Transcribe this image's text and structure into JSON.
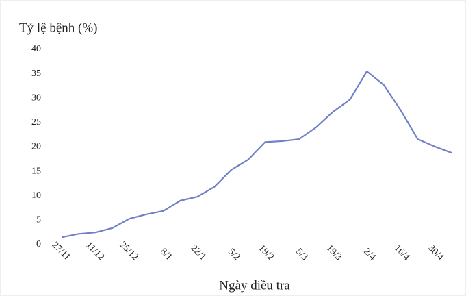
{
  "chart_data": {
    "type": "line",
    "title": "Tỷ lệ bệnh (%)",
    "x_label": "Ngày điều tra",
    "categories": [
      "27/11",
      null,
      "11/12",
      null,
      "25/12",
      null,
      "8/1",
      null,
      "22/1",
      null,
      "5/2",
      null,
      "19/2",
      null,
      "5/3",
      null,
      "19/3",
      null,
      "2/4",
      null,
      "16/4",
      null,
      "30/4",
      null
    ],
    "series": [
      {
        "name": "Tỷ lệ bệnh",
        "color": "#6f80c6",
        "values": [
          1.5,
          2.2,
          2.5,
          3.4,
          5.3,
          6.2,
          6.9,
          9.0,
          9.8,
          11.8,
          15.3,
          17.4,
          21.0,
          21.2,
          21.6,
          24.0,
          27.2,
          29.7,
          35.5,
          32.7,
          27.5,
          21.6,
          20.1,
          18.8
        ]
      }
    ],
    "ylim": [
      0,
      40
    ],
    "yticks": [
      0,
      5,
      10,
      15,
      20,
      25,
      30,
      35,
      40
    ],
    "grid": false
  }
}
